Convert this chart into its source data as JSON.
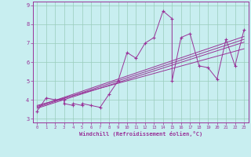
{
  "title": "",
  "xlabel": "Windchill (Refroidissement éolien,°C)",
  "ylabel": "",
  "bg_color": "#c8eef0",
  "line_color": "#993399",
  "grid_color": "#99ccbb",
  "xlim": [
    -0.5,
    23.5
  ],
  "ylim": [
    2.8,
    9.2
  ],
  "xticks": [
    0,
    1,
    2,
    3,
    4,
    5,
    6,
    7,
    8,
    9,
    10,
    11,
    12,
    13,
    14,
    15,
    16,
    17,
    18,
    19,
    20,
    21,
    22,
    23
  ],
  "yticks": [
    3,
    4,
    5,
    6,
    7,
    8,
    9
  ],
  "scatter_x": [
    0,
    1,
    2,
    3,
    3,
    4,
    4,
    5,
    5,
    6,
    7,
    8,
    9,
    10,
    11,
    12,
    13,
    14,
    15,
    15,
    16,
    17,
    18,
    19,
    20,
    21,
    22,
    23
  ],
  "scatter_y": [
    3.4,
    4.1,
    4.0,
    4.0,
    3.8,
    3.7,
    3.8,
    3.7,
    3.8,
    3.7,
    3.6,
    4.3,
    5.0,
    6.5,
    6.2,
    7.0,
    7.3,
    8.7,
    8.3,
    5.0,
    7.3,
    7.5,
    5.8,
    5.7,
    5.1,
    7.2,
    5.8,
    7.7
  ],
  "line1_x": [
    0,
    23
  ],
  "line1_y": [
    3.55,
    7.05
  ],
  "line2_x": [
    0,
    23
  ],
  "line2_y": [
    3.6,
    7.2
  ],
  "line3_x": [
    0,
    23
  ],
  "line3_y": [
    3.65,
    7.35
  ],
  "line4_x": [
    0,
    23
  ],
  "line4_y": [
    3.7,
    6.7
  ]
}
